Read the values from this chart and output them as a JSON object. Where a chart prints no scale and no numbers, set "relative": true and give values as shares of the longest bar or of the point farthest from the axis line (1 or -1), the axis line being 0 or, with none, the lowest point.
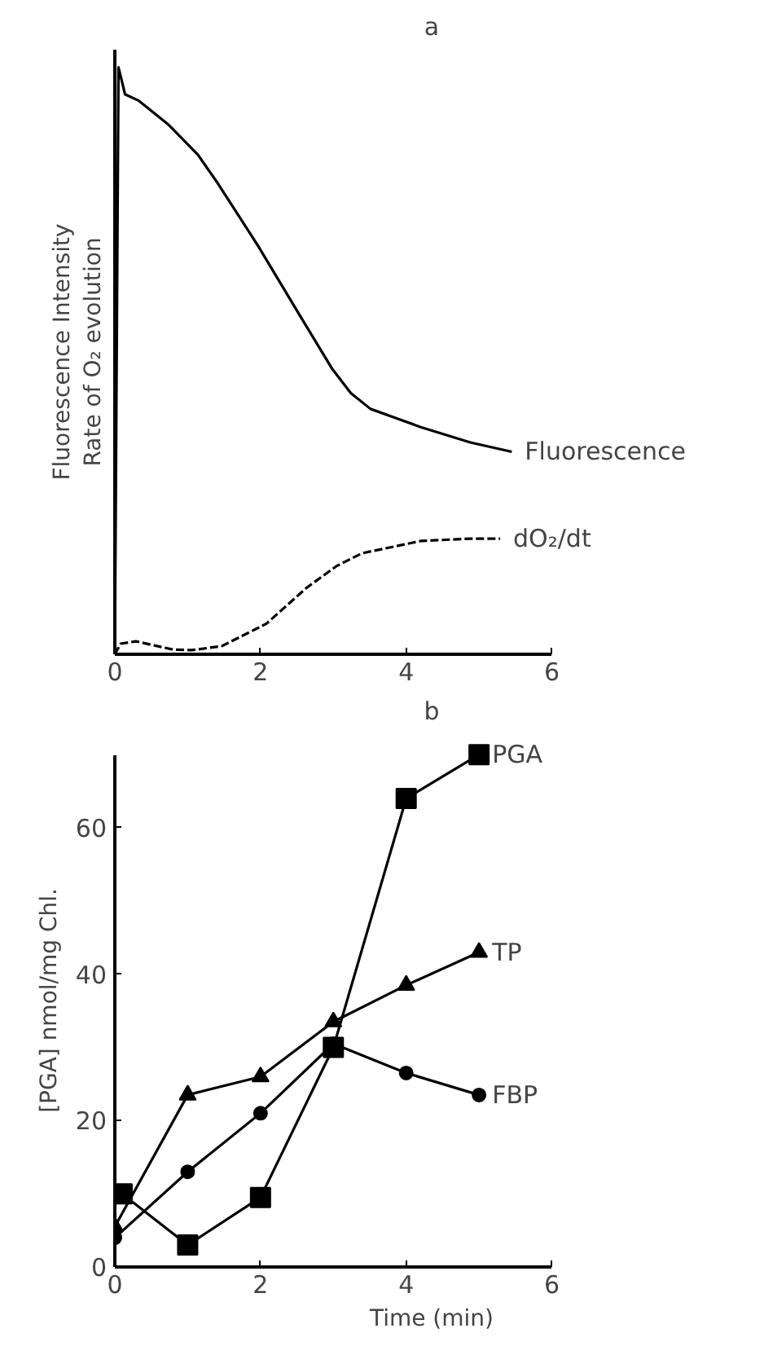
{
  "chart_data": [
    {
      "type": "line",
      "title": "a",
      "ylabel": "Fluorescence Intensity\nRate of O₂ evolution",
      "relative": true,
      "xlim": [
        0,
        6
      ],
      "xticks": [
        0,
        2,
        4,
        6
      ],
      "tick_labels": "x",
      "grid": false,
      "legend": false,
      "marker": "none",
      "series": [
        {
          "name": "Fluorescence",
          "color": "#000000",
          "line_style": "solid",
          "x": [
            0,
            0.05,
            0.14,
            0.33,
            0.73,
            1.14,
            1.41,
            1.96,
            2.57,
            2.98,
            3.24,
            3.51,
            4.2,
            4.88,
            5.45
          ],
          "values": [
            0,
            1.0,
            0.954,
            0.943,
            0.903,
            0.851,
            0.803,
            0.697,
            0.571,
            0.487,
            0.445,
            0.418,
            0.387,
            0.361,
            0.345
          ]
        },
        {
          "name": "dO₂/dt",
          "color": "#000000",
          "line_style": "dashed",
          "x": [
            0,
            0.08,
            0.29,
            0.8,
            1.06,
            1.47,
            2.08,
            2.63,
            3.04,
            3.39,
            4.2,
            4.88,
            5.29
          ],
          "values": [
            0,
            0.018,
            0.022,
            0.008,
            0.007,
            0.014,
            0.052,
            0.113,
            0.15,
            0.172,
            0.193,
            0.197,
            0.197
          ]
        }
      ]
    },
    {
      "type": "line",
      "title": "b",
      "xlabel": "Time (min)",
      "ylabel": "[PGA] nmol/mg Chl.",
      "xlim": [
        0,
        6
      ],
      "xticks": [
        0,
        2,
        4,
        6
      ],
      "ylim": [
        0,
        70
      ],
      "yticks": [
        0,
        20,
        40,
        60
      ],
      "grid": false,
      "legend": false,
      "series": [
        {
          "name": "PGA",
          "color": "#000000",
          "marker": "square",
          "x": [
            0.1,
            1,
            2,
            3,
            4,
            5
          ],
          "values": [
            10,
            3,
            9.5,
            30,
            64,
            70
          ]
        },
        {
          "name": "TP",
          "color": "#000000",
          "marker": "triangle",
          "x": [
            0,
            1,
            2,
            3,
            4,
            5
          ],
          "values": [
            5.5,
            23.5,
            26,
            33.5,
            38.5,
            43
          ]
        },
        {
          "name": "FBP",
          "color": "#000000",
          "marker": "circle",
          "x": [
            0,
            1,
            2,
            3,
            4,
            5
          ],
          "values": [
            4,
            13,
            21,
            30.5,
            26.5,
            23.5
          ]
        }
      ]
    }
  ]
}
